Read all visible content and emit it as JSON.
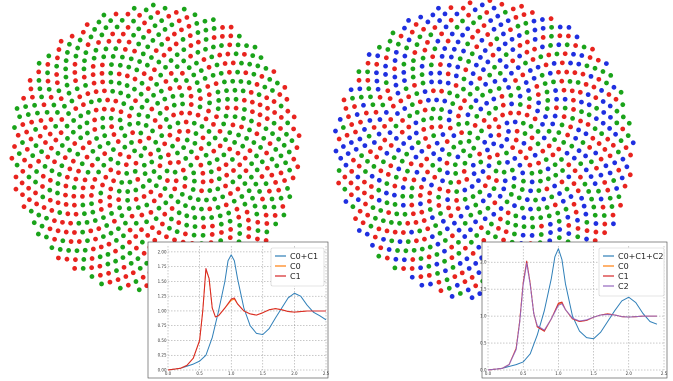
{
  "colors": {
    "green": "#1aa31a",
    "red": "#e8231e",
    "blue": "#1f2fe0",
    "c0c1": "#2f7fb8",
    "c0": "#ff7f0e",
    "c1": "#d62728",
    "c2": "#9467bd"
  },
  "chart_data": [
    {
      "type": "scatter",
      "description_points": "point cloud, two species",
      "series": [
        {
          "color": "#1aa31a"
        },
        {
          "color": "#e8231e"
        }
      ]
    },
    {
      "type": "line",
      "xlim": [
        0,
        2.5
      ],
      "ylim": [
        0,
        2.1
      ],
      "xticks": [
        "0.0",
        "0.5",
        "1.0",
        "1.5",
        "2.0",
        "2.5"
      ],
      "yticks": [
        "0.00",
        "0.25",
        "0.50",
        "0.75",
        "1.00",
        "1.25",
        "1.50",
        "1.75",
        "2.00"
      ],
      "legend_position": "top-right",
      "grid": true,
      "series": [
        {
          "name": "C0+C1",
          "color": "#2f7fb8",
          "x": [
            0,
            0.2,
            0.4,
            0.5,
            0.6,
            0.7,
            0.8,
            0.9,
            0.95,
            1.0,
            1.05,
            1.1,
            1.2,
            1.3,
            1.4,
            1.5,
            1.6,
            1.7,
            1.8,
            1.9,
            2.0,
            2.1,
            2.2,
            2.3,
            2.4,
            2.5
          ],
          "y": [
            0,
            0.03,
            0.1,
            0.15,
            0.25,
            0.55,
            1.0,
            1.5,
            1.85,
            1.95,
            1.85,
            1.55,
            1.05,
            0.75,
            0.62,
            0.6,
            0.7,
            0.88,
            1.05,
            1.22,
            1.3,
            1.25,
            1.1,
            0.98,
            0.92,
            0.85
          ]
        },
        {
          "name": "C0",
          "color": "#ff7f0e",
          "x": [
            0,
            0.2,
            0.3,
            0.4,
            0.5,
            0.55,
            0.6,
            0.65,
            0.7,
            0.75,
            0.8,
            0.9,
            1.0,
            1.05,
            1.1,
            1.2,
            1.3,
            1.4,
            1.5,
            1.6,
            1.7,
            1.8,
            1.9,
            2.0,
            2.2,
            2.4,
            2.5
          ],
          "y": [
            0,
            0.03,
            0.08,
            0.2,
            0.5,
            1.0,
            1.7,
            1.55,
            1.05,
            0.9,
            0.92,
            1.05,
            1.18,
            1.2,
            1.12,
            1.0,
            0.95,
            0.93,
            0.97,
            1.02,
            1.04,
            1.02,
            0.99,
            0.98,
            1.0,
            1.0,
            1.0
          ]
        },
        {
          "name": "C1",
          "color": "#d62728",
          "x": [
            0,
            0.2,
            0.3,
            0.4,
            0.5,
            0.55,
            0.6,
            0.65,
            0.7,
            0.75,
            0.8,
            0.9,
            1.0,
            1.05,
            1.1,
            1.2,
            1.3,
            1.4,
            1.5,
            1.6,
            1.7,
            1.8,
            1.9,
            2.0,
            2.2,
            2.4,
            2.5
          ],
          "y": [
            0,
            0.03,
            0.08,
            0.2,
            0.5,
            1.0,
            1.72,
            1.55,
            1.05,
            0.9,
            0.92,
            1.05,
            1.2,
            1.22,
            1.12,
            1.0,
            0.95,
            0.93,
            0.97,
            1.02,
            1.04,
            1.02,
            0.99,
            0.98,
            1.0,
            1.0,
            1.0
          ]
        }
      ]
    },
    {
      "type": "scatter",
      "series": [
        {
          "color": "#1aa31a"
        },
        {
          "color": "#e8231e"
        },
        {
          "color": "#1f2fe0"
        }
      ]
    },
    {
      "type": "line",
      "xlim": [
        0,
        2.5
      ],
      "ylim": [
        0,
        2.3
      ],
      "xticks": [
        "0.0",
        "0.5",
        "1.0",
        "1.5",
        "2.0",
        "2.5"
      ],
      "yticks": [
        "0.0",
        "0.5",
        "1.0",
        "1.5",
        "2.0"
      ],
      "legend_position": "top-right",
      "grid": true,
      "series": [
        {
          "name": "C0+C1+C2",
          "color": "#2f7fb8",
          "x": [
            0,
            0.2,
            0.4,
            0.5,
            0.6,
            0.7,
            0.8,
            0.9,
            0.95,
            1.0,
            1.05,
            1.1,
            1.2,
            1.3,
            1.4,
            1.5,
            1.6,
            1.7,
            1.8,
            1.9,
            2.0,
            2.1,
            2.2,
            2.3,
            2.4
          ],
          "y": [
            0,
            0.03,
            0.1,
            0.15,
            0.3,
            0.65,
            1.1,
            1.7,
            2.1,
            2.25,
            2.05,
            1.6,
            1.0,
            0.72,
            0.6,
            0.58,
            0.7,
            0.9,
            1.1,
            1.28,
            1.35,
            1.25,
            1.05,
            0.9,
            0.85
          ]
        },
        {
          "name": "C0",
          "color": "#ff7f0e",
          "x": [
            0,
            0.2,
            0.3,
            0.4,
            0.45,
            0.5,
            0.55,
            0.6,
            0.65,
            0.7,
            0.8,
            0.9,
            1.0,
            1.05,
            1.1,
            1.2,
            1.3,
            1.4,
            1.5,
            1.6,
            1.7,
            1.8,
            1.9,
            2.0,
            2.2,
            2.4
          ],
          "y": [
            0,
            0.03,
            0.1,
            0.4,
            0.9,
            1.6,
            2.0,
            1.6,
            1.05,
            0.8,
            0.72,
            0.95,
            1.22,
            1.25,
            1.12,
            0.95,
            0.9,
            0.92,
            0.98,
            1.02,
            1.04,
            1.02,
            0.99,
            0.98,
            1.0,
            1.0
          ]
        },
        {
          "name": "C1",
          "color": "#d62728",
          "x": [
            0,
            0.2,
            0.3,
            0.4,
            0.45,
            0.5,
            0.55,
            0.6,
            0.65,
            0.7,
            0.8,
            0.9,
            1.0,
            1.05,
            1.1,
            1.2,
            1.3,
            1.4,
            1.5,
            1.6,
            1.7,
            1.8,
            1.9,
            2.0,
            2.2,
            2.4
          ],
          "y": [
            0,
            0.03,
            0.1,
            0.4,
            0.9,
            1.62,
            2.02,
            1.6,
            1.05,
            0.8,
            0.72,
            0.95,
            1.24,
            1.26,
            1.12,
            0.95,
            0.9,
            0.92,
            0.98,
            1.02,
            1.04,
            1.02,
            0.99,
            0.98,
            1.0,
            1.0
          ]
        },
        {
          "name": "C2",
          "color": "#9467bd",
          "x": [
            0,
            0.2,
            0.3,
            0.4,
            0.45,
            0.5,
            0.55,
            0.6,
            0.65,
            0.7,
            0.8,
            0.9,
            1.0,
            1.05,
            1.1,
            1.2,
            1.3,
            1.4,
            1.5,
            1.6,
            1.7,
            1.8,
            1.9,
            2.0,
            2.2,
            2.4
          ],
          "y": [
            0,
            0.03,
            0.1,
            0.38,
            0.88,
            1.58,
            1.98,
            1.58,
            1.05,
            0.82,
            0.74,
            0.95,
            1.2,
            1.23,
            1.12,
            0.96,
            0.91,
            0.93,
            0.98,
            1.02,
            1.03,
            1.02,
            0.99,
            0.98,
            1.0,
            1.0
          ]
        }
      ]
    }
  ]
}
